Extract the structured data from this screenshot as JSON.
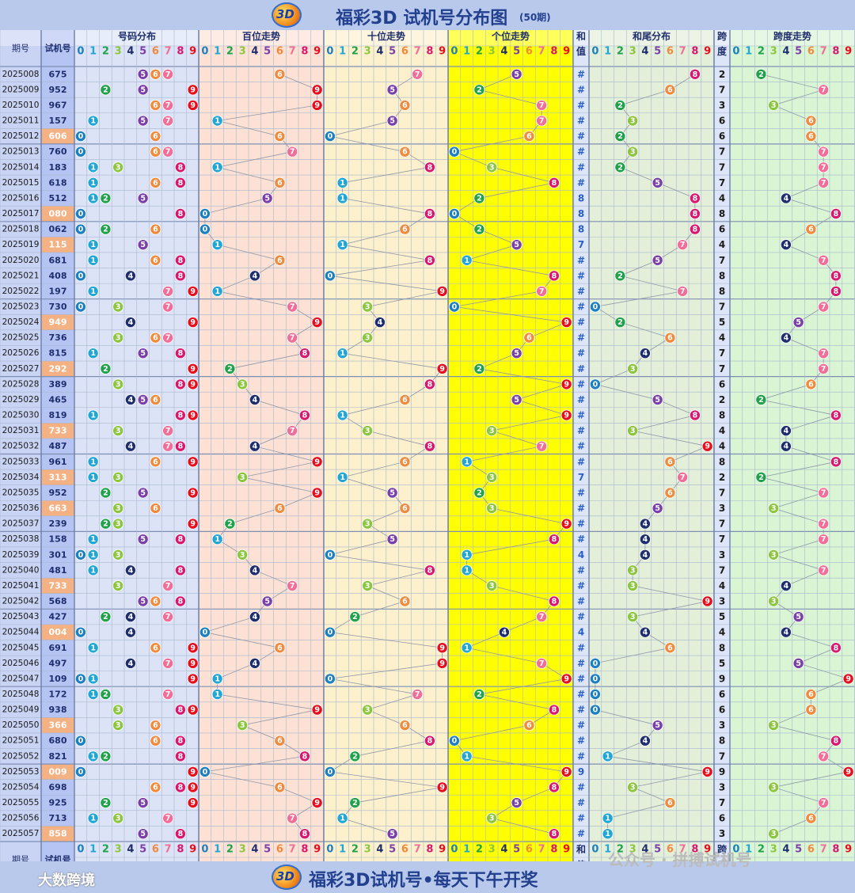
{
  "header": {
    "title": "福彩3D 试机号分布图",
    "subtitle": "(50期)",
    "logo_text": "3D"
  },
  "footer": {
    "title": "福彩3D试机号•每天下午开奖",
    "left_mark": "大数跨境",
    "right_mark": "公众号 · 拼搏试机号"
  },
  "columns": {
    "period": "期号",
    "number": "试机号",
    "dist": "号码分布",
    "hundreds": "百位走势",
    "tens": "十位走势",
    "units": "个位走势",
    "sum_a": "和",
    "sum_b": "值",
    "tail": "和尾分布",
    "span_a": "跨",
    "span_b": "度",
    "span_trend": "跨度走势"
  },
  "digits": [
    "0",
    "1",
    "2",
    "3",
    "4",
    "5",
    "6",
    "7",
    "8",
    "9"
  ],
  "sum_placeholder": "#",
  "colors": {
    "digit_colors": [
      "#1b7fc0",
      "#22a6d6",
      "#1fa24a",
      "#8cc63f",
      "#1f2f6e",
      "#7a3fa8",
      "#f08a3c",
      "#f06e97",
      "#d8186f",
      "#e60d1d"
    ],
    "zone_dist": "#dce3f7",
    "zone_hundreds": "#fde1d4",
    "zone_tens": "#fdf0cc",
    "zone_units": "#ffff00",
    "zone_tail": "#e3efd9",
    "zone_span": "#d9f5d4",
    "period_bg": "#c9d3f4",
    "number_bg": "#b5c4f2",
    "group_highlight": "#f4b183"
  },
  "chart_data": {
    "type": "table",
    "title": "福彩3D 试机号分布图",
    "periods": [
      "2025008",
      "2025009",
      "2025010",
      "2025011",
      "2025012",
      "2025013",
      "2025014",
      "2025015",
      "2025016",
      "2025017",
      "2025018",
      "2025019",
      "2025020",
      "2025021",
      "2025022",
      "2025023",
      "2025024",
      "2025025",
      "2025026",
      "2025027",
      "2025028",
      "2025029",
      "2025030",
      "2025031",
      "2025032",
      "2025033",
      "2025034",
      "2025035",
      "2025036",
      "2025037",
      "2025038",
      "2025039",
      "2025040",
      "2025041",
      "2025042",
      "2025043",
      "2025044",
      "2025045",
      "2025046",
      "2025047",
      "2025048",
      "2025049",
      "2025050",
      "2025051",
      "2025052",
      "2025053",
      "2025054",
      "2025055",
      "2025056",
      "2025057"
    ],
    "numbers": [
      "675",
      "952",
      "967",
      "157",
      "606",
      "760",
      "183",
      "618",
      "512",
      "080",
      "062",
      "115",
      "681",
      "408",
      "197",
      "730",
      "949",
      "736",
      "815",
      "292",
      "389",
      "465",
      "819",
      "733",
      "487",
      "961",
      "313",
      "952",
      "663",
      "239",
      "158",
      "301",
      "481",
      "733",
      "568",
      "427",
      "004",
      "691",
      "497",
      "109",
      "172",
      "938",
      "366",
      "680",
      "821",
      "009",
      "698",
      "925",
      "713",
      "858"
    ],
    "sums": [
      "#",
      "#",
      "#",
      "#",
      "#",
      "#",
      "#",
      "#",
      "8",
      "8",
      "8",
      "7",
      "#",
      "#",
      "#",
      "#",
      "#",
      "#",
      "#",
      "#",
      "#",
      "#",
      "#",
      "#",
      "#",
      "#",
      "7",
      "#",
      "#",
      "#",
      "#",
      "4",
      "#",
      "#",
      "#",
      "#",
      "4",
      "#",
      "#",
      "#",
      "#",
      "#",
      "#",
      "#",
      "#",
      "9",
      "#",
      "#",
      "#",
      "#"
    ],
    "tails": [
      8,
      6,
      2,
      3,
      2,
      3,
      2,
      5,
      8,
      8,
      8,
      7,
      5,
      2,
      7,
      0,
      2,
      6,
      4,
      3,
      0,
      5,
      8,
      3,
      9,
      6,
      7,
      6,
      5,
      4,
      4,
      4,
      3,
      3,
      9,
      3,
      4,
      6,
      0,
      0,
      0,
      0,
      5,
      4,
      1,
      9,
      3,
      6,
      1,
      1
    ],
    "spans": [
      2,
      7,
      3,
      6,
      6,
      7,
      7,
      7,
      4,
      8,
      6,
      4,
      7,
      8,
      8,
      7,
      5,
      4,
      7,
      7,
      6,
      2,
      8,
      4,
      4,
      8,
      2,
      7,
      3,
      7,
      7,
      3,
      7,
      4,
      3,
      5,
      4,
      8,
      5,
      9,
      6,
      6,
      3,
      8,
      7,
      9,
      3,
      7,
      6,
      3
    ]
  }
}
